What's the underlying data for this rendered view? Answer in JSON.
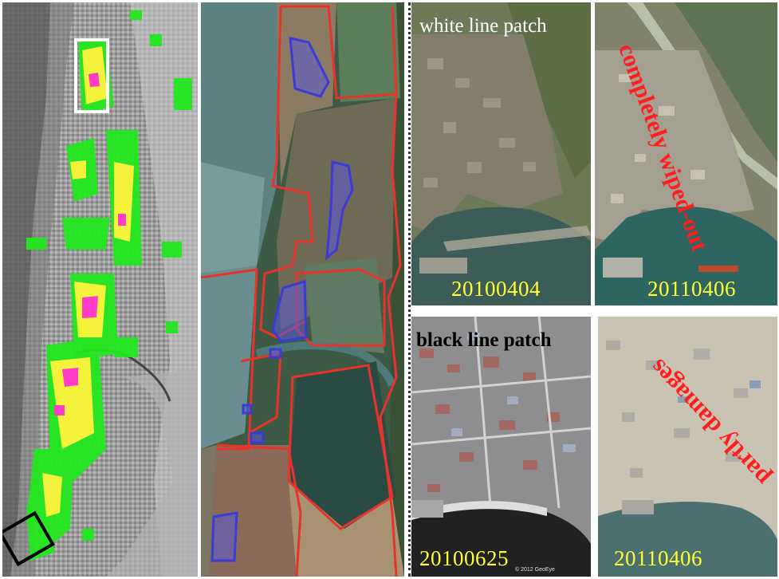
{
  "panels": {
    "white_patch": {
      "title": "white line patch",
      "before_date": "20100404",
      "after_date": "20110406",
      "damage_label": "completely wiped-out"
    },
    "black_patch": {
      "title": "black line patch",
      "before_date": "20100625",
      "after_date": "20110406",
      "damage_label": "partly damages"
    }
  },
  "copyright": "© 2012 GeoEye",
  "colors": {
    "damage_red": "#ff1d1d",
    "date_yellow": "#ffff33",
    "boundary_red": "#e8332b",
    "patch_blue": "#3b3bd6",
    "sar_green": "#22e81f",
    "sar_yellow": "#f4f23a",
    "sar_magenta": "#ff3cc8"
  }
}
